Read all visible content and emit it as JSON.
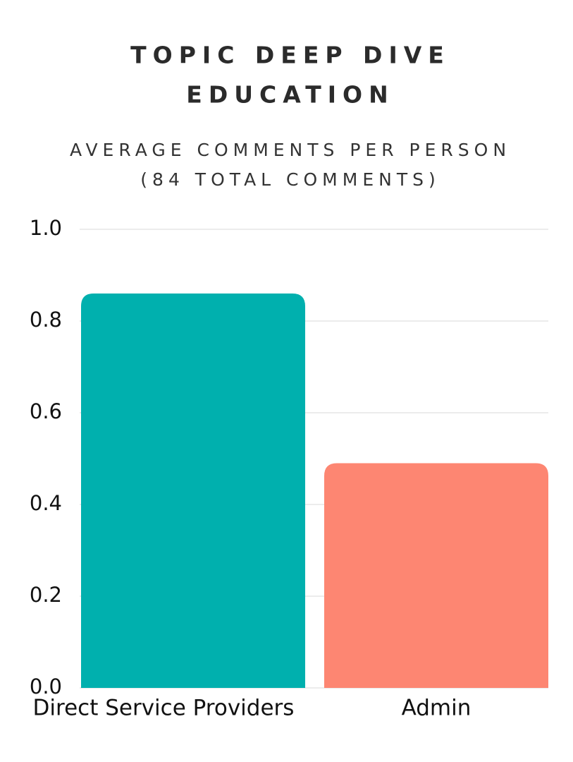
{
  "chart_data": {
    "type": "bar",
    "title": [
      "TOPIC DEEP DIVE",
      "EDUCATION"
    ],
    "subtitle": [
      "AVERAGE COMMENTS PER PERSON",
      "(84 TOTAL COMMENTS)"
    ],
    "categories": [
      "Direct Service Providers",
      "Admin"
    ],
    "values": [
      0.86,
      0.49
    ],
    "colors": [
      "#00b0ae",
      "#fd8672"
    ],
    "ylim": [
      0,
      1
    ],
    "yticks": [
      {
        "value": 0,
        "label": "0.0"
      },
      0.2,
      0.4,
      0.6,
      0.8,
      {
        "value": 1,
        "label": "1.0"
      }
    ],
    "grid": true
  }
}
